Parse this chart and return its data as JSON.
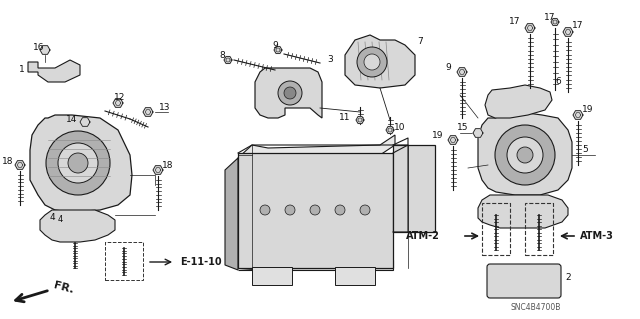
{
  "bg_color": "#ffffff",
  "line_color": "#1a1a1a",
  "fig_width": 6.4,
  "fig_height": 3.19,
  "dpi": 100,
  "catalog_code": "SNC4B4700B",
  "fr_label": "FR.",
  "e_label": "E-11-10",
  "atm2_label": "ATM-2",
  "atm3_label": "ATM-3",
  "gray_light": "#d8d8d8",
  "gray_mid": "#b0b0b0",
  "gray_dark": "#888888"
}
